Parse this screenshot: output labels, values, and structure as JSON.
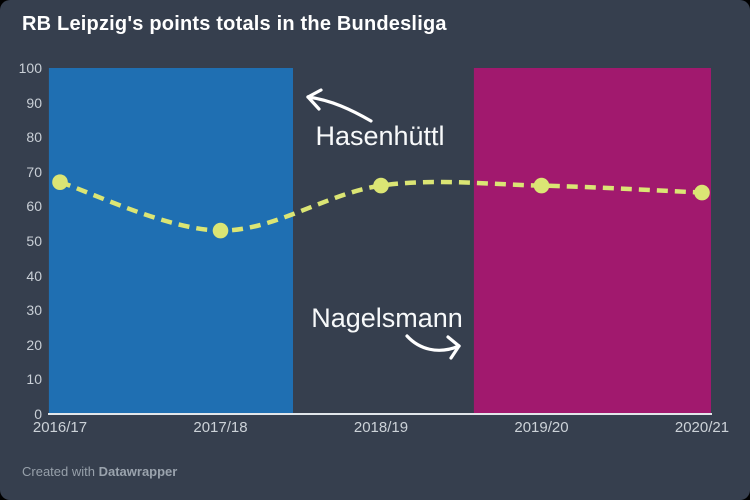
{
  "header": {
    "title": "RB Leipzig's points totals in the Bundesliga"
  },
  "annotations": {
    "hasenhuettl": {
      "label": "Hasenhüttl"
    },
    "nagelsmann": {
      "label": "Nagelsmann"
    }
  },
  "footer": {
    "created_with": "Created with ",
    "brand": "Datawrapper"
  },
  "colors": {
    "background": "#363f4e",
    "region_hasenhuettl": "#1f6fb2",
    "region_nagelsmann": "#a1196e",
    "line": "#dbe574",
    "axis_line": "#e2e6ea",
    "title_text": "#ffffff",
    "tick_text": "#c9cfd6",
    "annotation_text": "#f7f9fa",
    "footer_text": "#97a0aa",
    "arrow": "#ffffff"
  },
  "chart_data": {
    "type": "line",
    "title": "RB Leipzig's points totals in the Bundesliga",
    "categories": [
      "2016/17",
      "2017/18",
      "2018/19",
      "2019/20",
      "2020/21"
    ],
    "series": [
      {
        "name": "Points",
        "values": [
          67,
          53,
          66,
          66,
          64
        ]
      }
    ],
    "xlabel": "",
    "ylabel": "",
    "ylim": [
      0,
      100
    ],
    "yticks": [
      0,
      10,
      20,
      30,
      40,
      50,
      60,
      70,
      80,
      90,
      100
    ],
    "grid": false,
    "legend": "none",
    "line_style": "dashed",
    "marker": "circle",
    "regions": [
      {
        "label": "Hasenhüttl",
        "color": "#1f6fb2",
        "from_index": -0.069,
        "to_index": 1.452
      },
      {
        "label": "Nagelsmann",
        "color": "#a1196e",
        "from_index": 2.579,
        "to_index": 4.056
      }
    ]
  }
}
